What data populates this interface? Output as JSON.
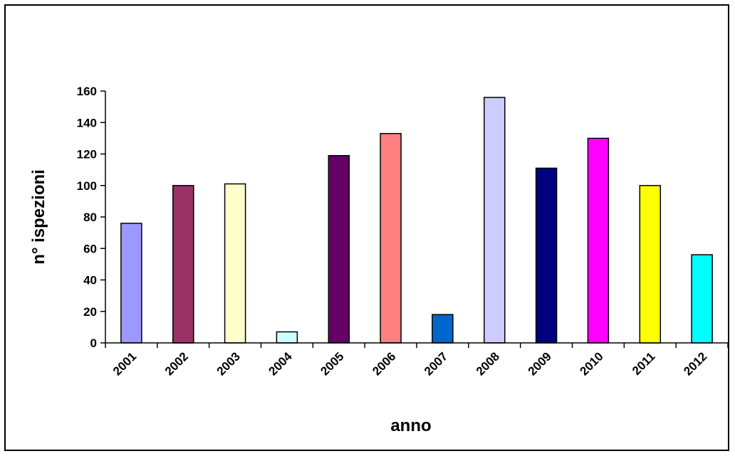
{
  "chart_data": {
    "type": "bar",
    "title": "",
    "xlabel": "anno",
    "ylabel": "n° ispezioni",
    "categories": [
      "2001",
      "2002",
      "2003",
      "2004",
      "2005",
      "2006",
      "2007",
      "2008",
      "2009",
      "2010",
      "2011",
      "2012"
    ],
    "values": [
      76,
      100,
      101,
      7,
      119,
      133,
      18,
      156,
      111,
      130,
      100,
      56
    ],
    "bar_colors": [
      "#9999ff",
      "#993366",
      "#ffffcc",
      "#ccffff",
      "#660066",
      "#ff8080",
      "#0066cc",
      "#ccccff",
      "#000080",
      "#ff00ff",
      "#ffff00",
      "#00ffff"
    ],
    "ylim": [
      0,
      160
    ],
    "yticks": [
      0,
      20,
      40,
      60,
      80,
      100,
      120,
      140,
      160
    ],
    "grid": false,
    "legend": "none"
  }
}
